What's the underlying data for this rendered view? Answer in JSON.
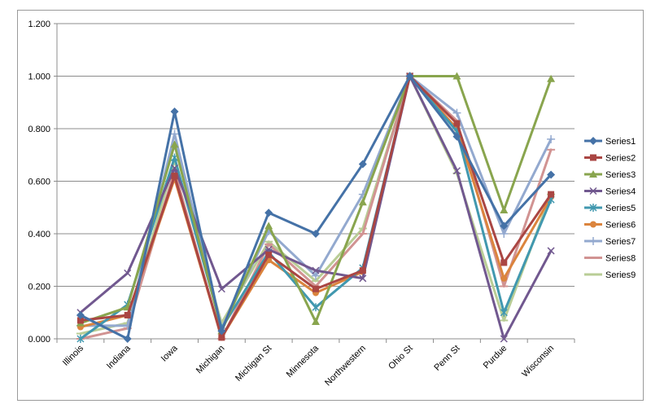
{
  "chart_data": {
    "type": "line",
    "title": "",
    "xlabel": "",
    "ylabel": "",
    "ylim": [
      0,
      1.2
    ],
    "yticks": [
      "0.000",
      "0.200",
      "0.400",
      "0.600",
      "0.800",
      "1.000",
      "1.200"
    ],
    "grid": true,
    "legend": "right",
    "categories": [
      "Illinois",
      "Indiana",
      "Iowa",
      "Michigan",
      "Michigan St",
      "Minnesota",
      "Northwestern",
      "Ohio St",
      "Penn St",
      "Purdue",
      "Wisconsin"
    ],
    "series": [
      {
        "name": "Series1",
        "color": "#4572a7",
        "marker": "diamond",
        "values": [
          0.09,
          0.0,
          0.865,
          0.03,
          0.48,
          0.4,
          0.665,
          1.0,
          0.77,
          0.43,
          0.625
        ]
      },
      {
        "name": "Series2",
        "color": "#aa4643",
        "marker": "square",
        "values": [
          0.07,
          0.09,
          0.62,
          0.005,
          0.32,
          0.19,
          0.26,
          1.0,
          0.82,
          0.29,
          0.55
        ]
      },
      {
        "name": "Series3",
        "color": "#89a54e",
        "marker": "triangle",
        "values": [
          0.06,
          0.12,
          0.74,
          0.03,
          0.43,
          0.065,
          0.52,
          1.0,
          1.0,
          0.49,
          0.99
        ]
      },
      {
        "name": "Series4",
        "color": "#71588f",
        "marker": "x",
        "values": [
          0.1,
          0.25,
          0.65,
          0.19,
          0.34,
          0.26,
          0.23,
          1.0,
          0.64,
          0.0,
          0.335
        ]
      },
      {
        "name": "Series5",
        "color": "#4198af",
        "marker": "star",
        "values": [
          0.0,
          0.13,
          0.69,
          0.04,
          0.33,
          0.12,
          0.27,
          1.0,
          0.79,
          0.1,
          0.53
        ]
      },
      {
        "name": "Series6",
        "color": "#db843d",
        "marker": "circle",
        "values": [
          0.045,
          0.09,
          0.61,
          0.005,
          0.3,
          0.175,
          0.255,
          1.0,
          0.8,
          0.23,
          0.54
        ]
      },
      {
        "name": "Series7",
        "color": "#93a9cf",
        "marker": "plus",
        "values": [
          0.05,
          0.05,
          0.78,
          0.04,
          0.41,
          0.24,
          0.55,
          1.0,
          0.86,
          0.4,
          0.76
        ]
      },
      {
        "name": "Series8",
        "color": "#d19392",
        "marker": "dash",
        "values": [
          0.0,
          0.04,
          0.64,
          0.0,
          0.36,
          0.2,
          0.4,
          1.0,
          0.83,
          0.2,
          0.72
        ]
      },
      {
        "name": "Series9",
        "color": "#b9cd96",
        "marker": "dash",
        "values": [
          0.02,
          0.06,
          0.68,
          0.06,
          0.37,
          0.22,
          0.42,
          1.0,
          0.63,
          0.07,
          0.55
        ]
      }
    ]
  }
}
